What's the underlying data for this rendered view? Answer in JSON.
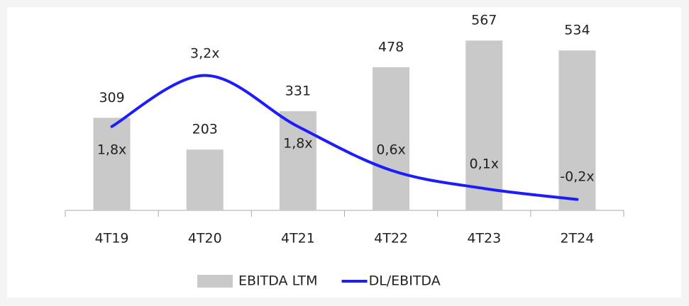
{
  "chart_data": {
    "type": "bar_line",
    "categories": [
      "4T19",
      "4T20",
      "4T21",
      "4T22",
      "4T23",
      "2T24"
    ],
    "series": [
      {
        "name": "EBITDA LTM",
        "type": "bar",
        "color": "#c9c9c9",
        "values": [
          309,
          203,
          331,
          478,
          567,
          534
        ]
      },
      {
        "name": "DL/EBITDA",
        "type": "line",
        "axis": "y2",
        "color": "#1d1dfa",
        "values": [
          1.8,
          3.2,
          1.8,
          0.6,
          0.1,
          -0.2
        ],
        "value_labels": [
          "1,8x",
          "3,2x",
          "1,8x",
          "0,6x",
          "0,1x",
          "-0,2x"
        ]
      }
    ],
    "ylim": [
      0,
      700
    ],
    "y2lim": [
      -0.5,
      5.25
    ],
    "legend": "bottom"
  }
}
